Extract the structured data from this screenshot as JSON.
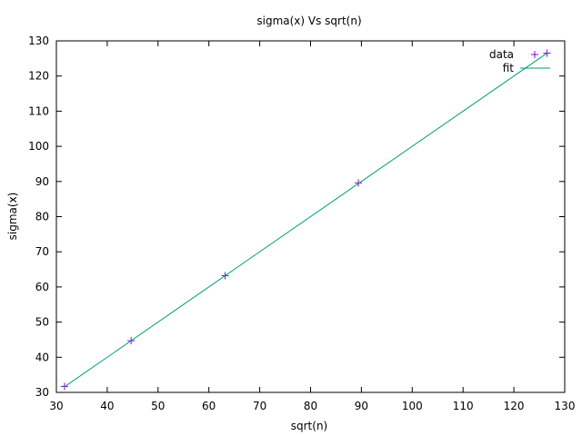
{
  "chart_data": {
    "type": "scatter",
    "title": "sigma(x) Vs sqrt(n)",
    "xlabel": "sqrt(n)",
    "ylabel": "sigma(x)",
    "xlim": [
      30,
      130
    ],
    "ylim": [
      30,
      130
    ],
    "xticks": [
      30,
      40,
      50,
      60,
      70,
      80,
      90,
      100,
      110,
      120,
      130
    ],
    "yticks": [
      30,
      40,
      50,
      60,
      70,
      80,
      90,
      100,
      110,
      120,
      130
    ],
    "grid": false,
    "legend_position": "top-right",
    "series": [
      {
        "name": "data",
        "kind": "points",
        "marker": "plus",
        "color": "#9400d3",
        "x": [
          31.6,
          44.7,
          63.2,
          89.4,
          126.5
        ],
        "y": [
          31.7,
          44.7,
          63.2,
          89.6,
          126.5
        ]
      },
      {
        "name": "fit",
        "kind": "line",
        "color": "#009e73",
        "x": [
          31.6,
          126.5
        ],
        "y": [
          31.6,
          126.5
        ]
      }
    ]
  }
}
